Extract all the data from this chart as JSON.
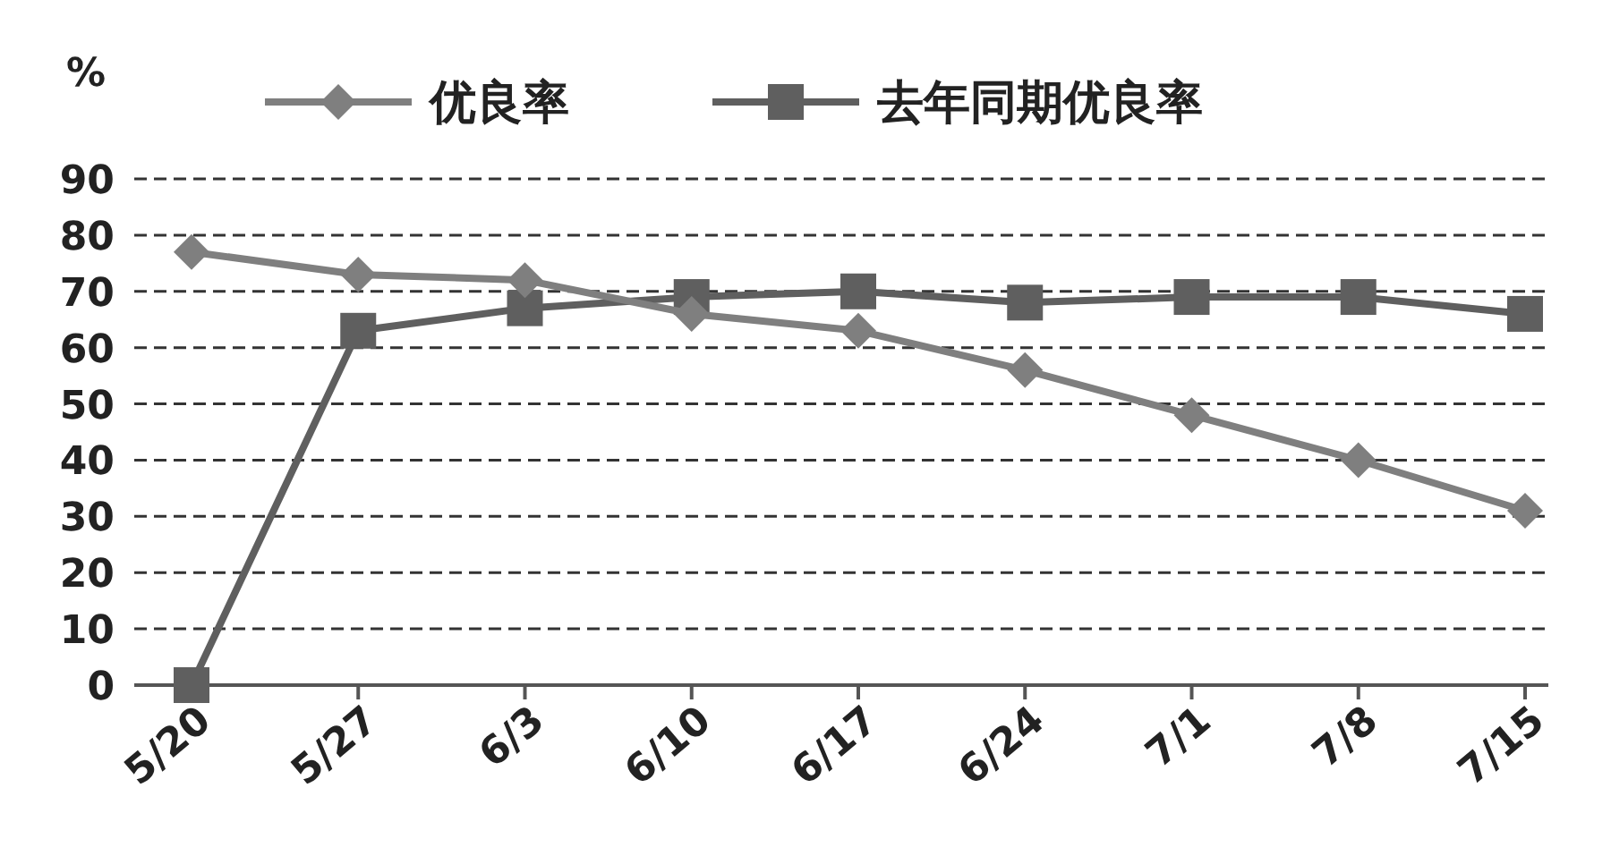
{
  "chart_data": {
    "type": "line",
    "ylabel": "%",
    "categories": [
      "5/20",
      "5/27",
      "6/3",
      "6/10",
      "6/17",
      "6/24",
      "7/1",
      "7/8",
      "7/15"
    ],
    "series": [
      {
        "name": "优良率",
        "color": "#7f7f7f",
        "marker": "diamond",
        "values": [
          77,
          73,
          72,
          66,
          63,
          56,
          48,
          40,
          31
        ]
      },
      {
        "name": "去年同期优良率",
        "color": "#5f5f5f",
        "marker": "square",
        "values": [
          0,
          63,
          67,
          69,
          70,
          68,
          69,
          69,
          66
        ]
      }
    ],
    "ylim": [
      0,
      90
    ],
    "yticks": [
      0,
      10,
      20,
      30,
      40,
      50,
      60,
      70,
      80,
      90
    ],
    "grid": "y",
    "legend": "top",
    "line_style": "solid"
  }
}
